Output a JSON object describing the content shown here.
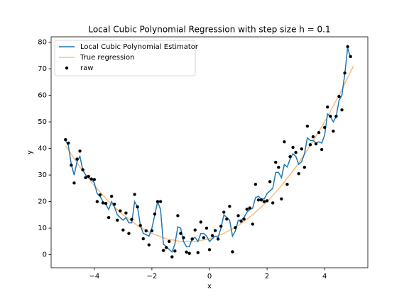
{
  "chart_data": {
    "type": "line",
    "title": "Local Cubic Polynomial Regression with step size h = 0.1",
    "x_label": "x",
    "y_label": "y",
    "xlim": [
      -5.5,
      5.5
    ],
    "ylim": [
      -4.9,
      82.0
    ],
    "xticks": [
      {
        "value": -4,
        "label": "−4"
      },
      {
        "value": -2,
        "label": "−2"
      },
      0,
      2,
      4
    ],
    "yticks": [
      0,
      10,
      20,
      30,
      40,
      50,
      60,
      70,
      80
    ],
    "legend": "upper left",
    "x": [
      -5.0,
      -4.9,
      -4.8,
      -4.7,
      -4.6,
      -4.5,
      -4.4,
      -4.3,
      -4.2,
      -4.1,
      -4.0,
      -3.9,
      -3.8,
      -3.7,
      -3.6,
      -3.5,
      -3.4,
      -3.3,
      -3.2,
      -3.1,
      -3.0,
      -2.9,
      -2.8,
      -2.7,
      -2.6,
      -2.5,
      -2.4,
      -2.3,
      -2.2,
      -2.1,
      -2.0,
      -1.9,
      -1.8,
      -1.7,
      -1.6,
      -1.5,
      -1.4,
      -1.3,
      -1.2,
      -1.1,
      -1.0,
      -0.9,
      -0.8,
      -0.7,
      -0.6,
      -0.5,
      -0.4,
      -0.3,
      -0.2,
      -0.1,
      0.0,
      0.1,
      0.2,
      0.3,
      0.4,
      0.5,
      0.6,
      0.7,
      0.8,
      0.9,
      1.0,
      1.1,
      1.2,
      1.3,
      1.4,
      1.5,
      1.6,
      1.7,
      1.8,
      1.9,
      2.0,
      2.1,
      2.2,
      2.3,
      2.4,
      2.5,
      2.6,
      2.7,
      2.8,
      2.9,
      3.0,
      3.1,
      3.2,
      3.3,
      3.4,
      3.5,
      3.6,
      3.7,
      3.8,
      3.9,
      4.0,
      4.1,
      4.2,
      4.3,
      4.4,
      4.5,
      4.6,
      4.7,
      4.8,
      4.9
    ],
    "series": [
      {
        "name": "Local Cubic Polynomial Estimator",
        "type": "line",
        "color": "#1f77b4",
        "values": [
          43,
          41,
          34,
          30,
          35,
          37,
          32,
          30,
          29,
          28.5,
          27,
          23,
          22,
          20,
          19,
          17,
          20,
          18,
          15,
          14,
          13,
          14,
          12,
          12,
          20,
          18,
          11,
          8,
          7.5,
          7,
          10,
          15,
          20,
          17,
          4,
          3,
          2,
          1,
          4,
          10.5,
          10,
          5,
          3,
          3,
          6,
          6.5,
          5,
          8,
          8,
          7,
          5,
          6,
          7,
          6.5,
          10,
          15,
          14,
          13,
          7,
          9,
          13,
          13,
          14,
          16,
          17,
          17.5,
          21.5,
          22,
          21,
          21,
          23,
          24,
          25,
          31,
          31,
          29,
          34,
          33,
          36,
          38,
          37,
          34,
          35,
          38,
          44,
          43,
          43,
          42,
          42.5,
          42,
          45,
          53,
          52,
          50,
          52,
          58,
          60,
          68,
          78,
          74
        ]
      },
      {
        "name": "True regression",
        "type": "line",
        "color": "#ffbb78",
        "x": [
          -5,
          -4.5,
          -4,
          -3.5,
          -3,
          -2.5,
          -2,
          -1.5,
          -1,
          -0.5,
          0,
          0.5,
          1,
          1.5,
          2,
          2.5,
          3,
          3.5,
          4,
          4.5,
          5
        ],
        "values": [
          41,
          33,
          26,
          20,
          15,
          11,
          8,
          6,
          5,
          5,
          6,
          8,
          11,
          15,
          20,
          26,
          33,
          41,
          50,
          60,
          71
        ]
      },
      {
        "name": "raw",
        "type": "scatter",
        "color": "#000000",
        "values": [
          43.3,
          42,
          33.7,
          27,
          36,
          39,
          32,
          29,
          29.5,
          28.5,
          28.3,
          20,
          22.5,
          19.5,
          19.3,
          14,
          22,
          19,
          13,
          16.5,
          9.3,
          15.7,
          8,
          13.3,
          22.7,
          18,
          11,
          6,
          9,
          3.7,
          9,
          15.3,
          20,
          20,
          1.6,
          2.7,
          5,
          -0.8,
          1.4,
          14.7,
          8,
          6.4,
          1,
          0.5,
          5.9,
          9.3,
          0.8,
          12.3,
          6.4,
          10,
          1.9,
          7.2,
          9.1,
          5.9,
          10.7,
          16,
          13.4,
          18.2,
          1.1,
          10.2,
          14.7,
          12.6,
          13.4,
          17.1,
          17.6,
          11.5,
          26.5,
          20.6,
          20.6,
          20,
          20.3,
          27.5,
          19.5,
          34.8,
          32.9,
          21,
          42.5,
          26.5,
          36.9,
          40.4,
          38.5,
          30.5,
          39.8,
          32.9,
          48.4,
          41.4,
          44.4,
          41.7,
          46,
          39.6,
          47.9,
          55.6,
          52.1,
          46.5,
          52.1,
          59.6,
          54.5,
          68.4,
          78.3,
          74.6
        ]
      }
    ]
  }
}
